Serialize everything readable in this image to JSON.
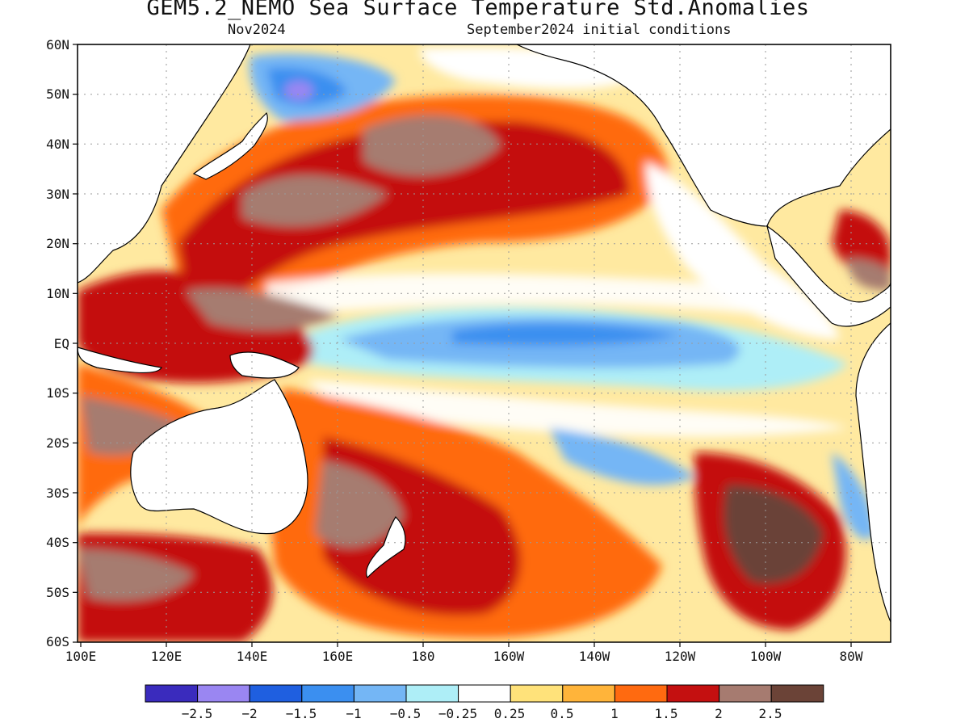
{
  "title": "GEM5.2_NEMO Sea Surface Temperature Std.Anomalies",
  "subtitle_left": "Nov2024",
  "subtitle_right": "September2024 initial conditions",
  "map": {
    "region": "Pacific Ocean",
    "lon_range": [
      100,
      290
    ],
    "lat_range": [
      -60,
      60
    ],
    "lat_ticks": [
      "60N",
      "50N",
      "40N",
      "30N",
      "20N",
      "10N",
      "EQ",
      "10S",
      "20S",
      "30S",
      "40S",
      "50S",
      "60S"
    ],
    "lon_ticks": [
      "100E",
      "120E",
      "140E",
      "160E",
      "180",
      "160W",
      "140W",
      "120W",
      "100W",
      "80W"
    ],
    "grid": "dotted"
  },
  "colorbar": {
    "labels": [
      "−2.5",
      "−2",
      "−1.5",
      "−1",
      "−0.5",
      "−0.25",
      "0.25",
      "0.5",
      "1",
      "1.5",
      "2",
      "2.5"
    ],
    "colors": [
      "#3a2bbd",
      "#9a86f2",
      "#1f5fe0",
      "#3b8ff0",
      "#74b6f5",
      "#aeeef7",
      "#ffffff",
      "#ffe27a",
      "#ffb43a",
      "#ff6a10",
      "#c41010",
      "#a67b70",
      "#6b4337"
    ]
  }
}
